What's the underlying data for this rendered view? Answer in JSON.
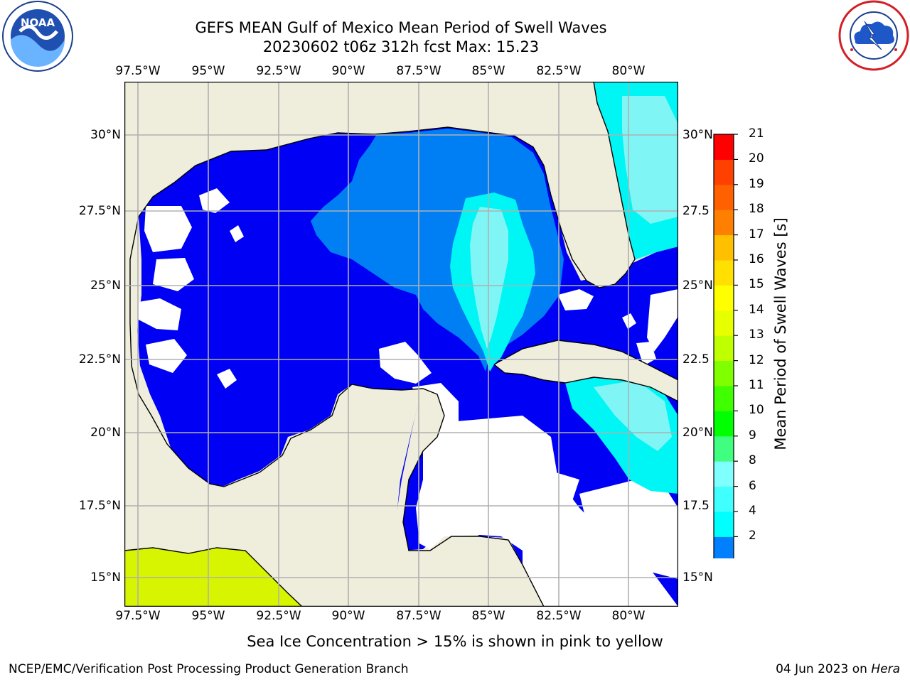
{
  "title": {
    "line1": "GEFS MEAN Gulf of Mexico Mean Period of Swell Waves",
    "line2": "20230602 t06z 312h fcst   Max: 15.23"
  },
  "logos": {
    "left": {
      "text": "NOAA",
      "ring_text": "NATIONAL OCEANIC AND ATMOSPHERIC ADMINISTRATION · U.S. DEPARTMENT OF COMMERCE"
    },
    "right": {
      "ring_text": "NATIONAL WEATHER SERVICE"
    }
  },
  "map": {
    "lon_labels": [
      "97.5°W",
      "95°W",
      "92.5°W",
      "90°W",
      "87.5°W",
      "85°W",
      "82.5°W",
      "80°W"
    ],
    "lat_labels_left": [
      "30°N",
      "27.5°N",
      "25°N",
      "22.5°N",
      "20°N",
      "17.5°N",
      "15°N"
    ],
    "lat_labels_right": [
      "30°N",
      "27.5",
      "25°N",
      "22.5",
      "20°N",
      "17.5",
      "15°N"
    ],
    "colors": {
      "land": "#efeddc",
      "ocean_blue": "#0000f5",
      "mid_blue": "#007ff5",
      "cyan": "#00f5f5",
      "light_cyan": "#7ff5f5",
      "sea_ice_yellow": "#d7f500",
      "no_data": "#ffffff"
    }
  },
  "colorbar": {
    "label": "Mean Period of Swell Waves [s]",
    "ticks": [
      "21",
      "20",
      "19",
      "18",
      "17",
      "16",
      "15",
      "14",
      "13",
      "12",
      "11",
      "10",
      "9",
      "8",
      "6",
      "4",
      "2"
    ],
    "colors": [
      "#0080ff",
      "#00ffff",
      "#40ffff",
      "#80ffff",
      "#40ff80",
      "#00ff00",
      "#40ff00",
      "#80ff00",
      "#c0ff00",
      "#e8ff00",
      "#ffff00",
      "#ffe000",
      "#ffc000",
      "#ff8000",
      "#ff6000",
      "#ff4000",
      "#ff0000"
    ],
    "extend_color": "#0000ff"
  },
  "footnote": "Sea Ice Concentration > 15% is shown in pink to yellow",
  "credit": {
    "left": "NCEP/EMC/Verification Post Processing Product Generation Branch",
    "right_prefix": "04 Jun 2023 on ",
    "right_machine": "Hera"
  }
}
